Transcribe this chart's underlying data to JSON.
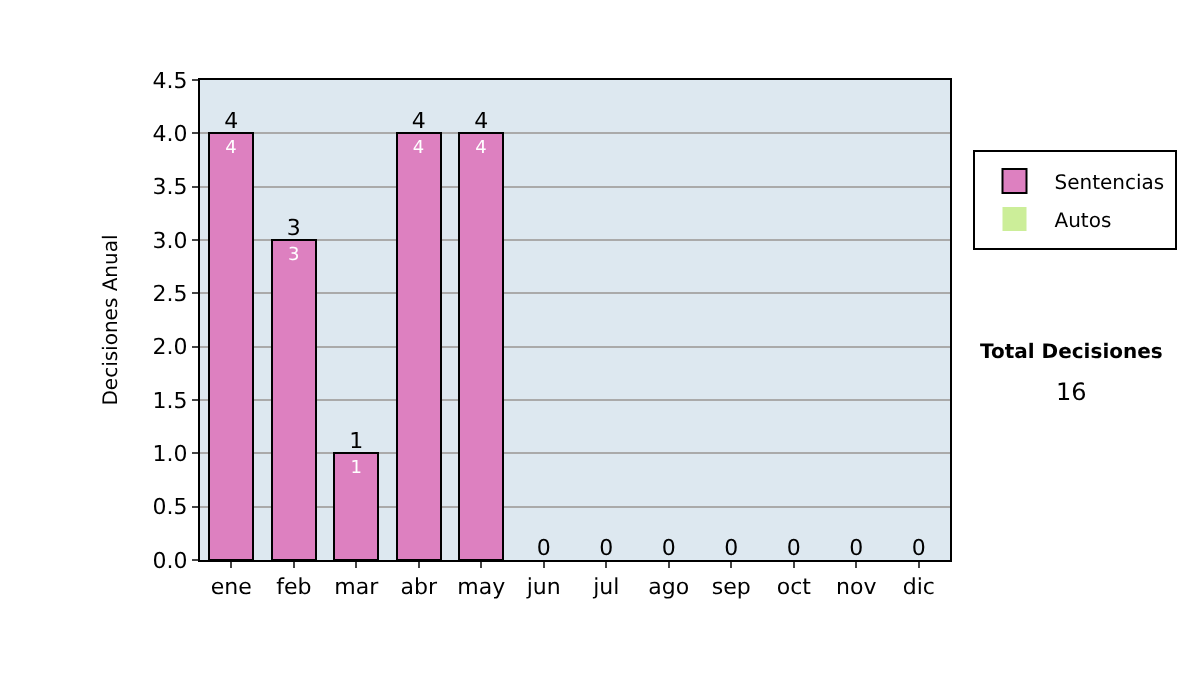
{
  "chart_data": {
    "type": "bar",
    "stacked": true,
    "ylabel": "Decisiones Anual",
    "categories": [
      "ene",
      "feb",
      "mar",
      "abr",
      "may",
      "jun",
      "jul",
      "ago",
      "sep",
      "oct",
      "nov",
      "dic"
    ],
    "series": [
      {
        "name": "Sentencias",
        "color": "#dd80c0",
        "values": [
          4,
          3,
          1,
          4,
          4,
          0,
          0,
          0,
          0,
          0,
          0,
          0
        ],
        "value_labels": [
          "4",
          "3",
          "1",
          "4",
          "4",
          null,
          null,
          null,
          null,
          null,
          null,
          null
        ]
      },
      {
        "name": "Autos",
        "color": "#ccee99",
        "values": [
          0,
          0,
          0,
          0,
          0,
          0,
          0,
          0,
          0,
          0,
          0,
          0
        ]
      }
    ],
    "totals": [
      "4",
      "3",
      "1",
      "4",
      "4",
      "0",
      "0",
      "0",
      "0",
      "0",
      "0",
      "0"
    ],
    "ylim": [
      0,
      4.5
    ],
    "yticks": [
      {
        "value": 0,
        "label": "0.0"
      },
      {
        "value": 0.5,
        "label": "0.5"
      },
      {
        "value": 1,
        "label": "1.0"
      },
      {
        "value": 1.5,
        "label": "1.5"
      },
      {
        "value": 2,
        "label": "2.0"
      },
      {
        "value": 2.5,
        "label": "2.5"
      },
      {
        "value": 3,
        "label": "3.0"
      },
      {
        "value": 3.5,
        "label": "3.5"
      },
      {
        "value": 4,
        "label": "4.0"
      },
      {
        "value": 4.5,
        "label": "4.5"
      }
    ],
    "grid": "y",
    "legend": "right",
    "annotations": [
      "Total Decisiones",
      "16"
    ]
  }
}
